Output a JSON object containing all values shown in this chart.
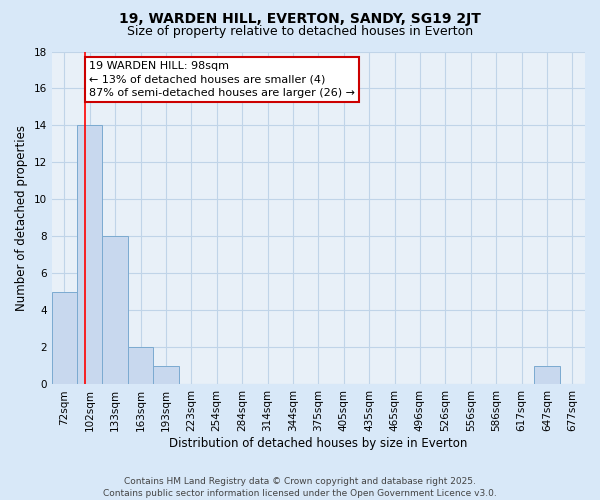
{
  "title": "19, WARDEN HILL, EVERTON, SANDY, SG19 2JT",
  "subtitle": "Size of property relative to detached houses in Everton",
  "xlabel": "Distribution of detached houses by size in Everton",
  "ylabel": "Number of detached properties",
  "categories": [
    "72sqm",
    "102sqm",
    "133sqm",
    "163sqm",
    "193sqm",
    "223sqm",
    "254sqm",
    "284sqm",
    "314sqm",
    "344sqm",
    "375sqm",
    "405sqm",
    "435sqm",
    "465sqm",
    "496sqm",
    "526sqm",
    "556sqm",
    "586sqm",
    "617sqm",
    "647sqm",
    "677sqm"
  ],
  "values": [
    5,
    14,
    8,
    2,
    1,
    0,
    0,
    0,
    0,
    0,
    0,
    0,
    0,
    0,
    0,
    0,
    0,
    0,
    0,
    1,
    0
  ],
  "bar_color": "#c8d8ee",
  "bar_edge_color": "#7baad0",
  "grid_color": "#c0d4e8",
  "background_color": "#d8e8f8",
  "plot_background": "#e8f0f8",
  "annotation_text_line1": "19 WARDEN HILL: 98sqm",
  "annotation_text_line2": "← 13% of detached houses are smaller (4)",
  "annotation_text_line3": "87% of semi-detached houses are larger (26) →",
  "annotation_box_color": "#ffffff",
  "annotation_border_color": "#cc0000",
  "ylim": [
    0,
    18
  ],
  "yticks": [
    0,
    2,
    4,
    6,
    8,
    10,
    12,
    14,
    16,
    18
  ],
  "red_line_index": 0.82,
  "footnote_line1": "Contains HM Land Registry data © Crown copyright and database right 2025.",
  "footnote_line2": "Contains public sector information licensed under the Open Government Licence v3.0.",
  "title_fontsize": 10,
  "subtitle_fontsize": 9,
  "xlabel_fontsize": 8.5,
  "ylabel_fontsize": 8.5,
  "tick_fontsize": 7.5,
  "annotation_fontsize": 8,
  "footnote_fontsize": 6.5
}
